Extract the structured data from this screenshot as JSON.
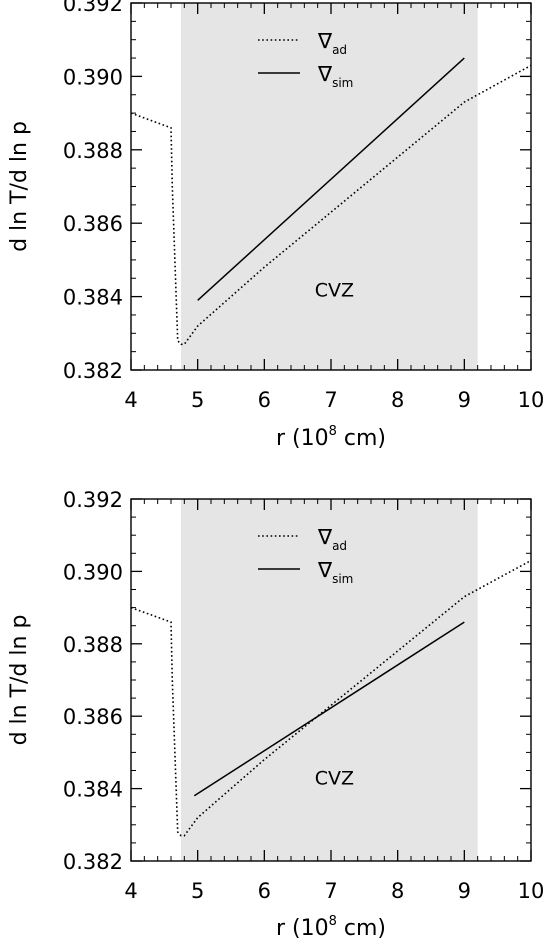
{
  "chart_data": [
    {
      "type": "line",
      "xlabel": "r (10",
      "xlabel_sup": "8",
      "xlabel_suffix": " cm)",
      "ylabel": "d ln T/d ln p",
      "xlim": [
        4,
        10
      ],
      "ylim": [
        0.382,
        0.392
      ],
      "xticks": [
        "4",
        "5",
        "6",
        "7",
        "8",
        "9",
        "10"
      ],
      "yticks": [
        "0.382",
        "0.384",
        "0.386",
        "0.388",
        "0.390",
        "0.392"
      ],
      "shaded_region": {
        "x": [
          4.75,
          9.2
        ],
        "label": "CVZ",
        "label_pos": [
          7.5,
          0.3842
        ]
      },
      "legend": [
        {
          "symbol": "∇",
          "sub": "ad",
          "style": "dotted"
        },
        {
          "symbol": "∇",
          "sub": "sim",
          "style": "solid"
        }
      ],
      "series": [
        {
          "style": "dotted",
          "x": [
            4.0,
            4.6,
            4.62,
            4.7,
            4.75,
            4.8,
            5.0,
            6.0,
            7.0,
            8.0,
            9.0,
            10.0
          ],
          "y": [
            0.389,
            0.3886,
            0.387,
            0.3828,
            0.3827,
            0.3827,
            0.3832,
            0.3848,
            0.3863,
            0.3878,
            0.3893,
            0.3903
          ]
        },
        {
          "style": "solid",
          "x": [
            5.0,
            9.0
          ],
          "y": [
            0.3839,
            0.3905
          ]
        }
      ]
    },
    {
      "type": "line",
      "xlabel": "r (10",
      "xlabel_sup": "8",
      "xlabel_suffix": " cm)",
      "ylabel": "d ln T/d ln p",
      "xlim": [
        4,
        10
      ],
      "ylim": [
        0.382,
        0.392
      ],
      "xticks": [
        "4",
        "5",
        "6",
        "7",
        "8",
        "9",
        "10"
      ],
      "yticks": [
        "0.382",
        "0.384",
        "0.386",
        "0.388",
        "0.390",
        "0.392"
      ],
      "shaded_region": {
        "x": [
          4.75,
          9.2
        ],
        "label": "CVZ",
        "label_pos": [
          7.5,
          0.3843
        ]
      },
      "legend": [
        {
          "symbol": "∇",
          "sub": "ad",
          "style": "dotted"
        },
        {
          "symbol": "∇",
          "sub": "sim",
          "style": "solid"
        }
      ],
      "series": [
        {
          "style": "dotted",
          "x": [
            4.0,
            4.6,
            4.62,
            4.7,
            4.75,
            4.8,
            5.0,
            6.0,
            7.0,
            8.0,
            9.0,
            10.0
          ],
          "y": [
            0.389,
            0.3886,
            0.387,
            0.3828,
            0.3827,
            0.3827,
            0.3832,
            0.3848,
            0.3863,
            0.3878,
            0.3893,
            0.3903
          ]
        },
        {
          "style": "solid",
          "x": [
            4.95,
            9.0
          ],
          "y": [
            0.3838,
            0.3886
          ]
        }
      ]
    }
  ]
}
